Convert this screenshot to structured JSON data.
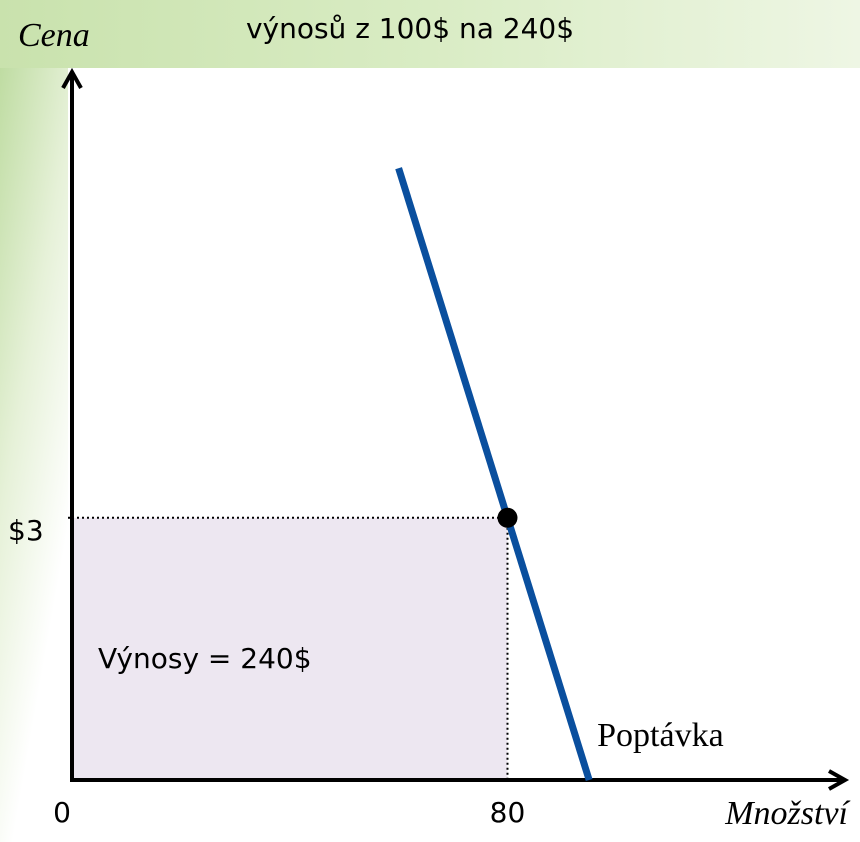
{
  "chart_data": {
    "type": "line",
    "title": "výnosů z 100$ na 240$",
    "ylabel": "Cena",
    "xlabel": "Množství",
    "xlim": [
      0,
      142
    ],
    "ylim": [
      0,
      8.1
    ],
    "xticks": [
      0,
      80
    ],
    "yticks": [
      {
        "value": 3,
        "label": "$3"
      }
    ],
    "series": [
      {
        "name": "Poptávka",
        "color": "#0a4f9e",
        "x": [
          60,
          95
        ],
        "values": [
          7,
          0
        ]
      }
    ],
    "point": {
      "x": 80,
      "y": 3
    },
    "area_color": "#ede7f1",
    "annotation": "Výnosy = 240$"
  }
}
